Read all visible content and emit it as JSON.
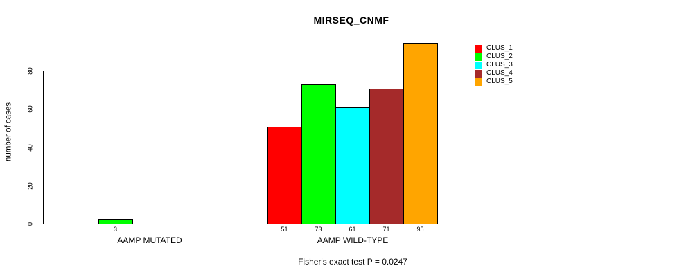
{
  "chart_data": {
    "type": "bar",
    "title": "MIRSEQ_CNMF",
    "ylabel": "number of cases",
    "yticks": [
      0,
      20,
      40,
      60,
      80
    ],
    "ylim": [
      0,
      96
    ],
    "grid": false,
    "legend_position": "right-top",
    "clusters": [
      {
        "name": "CLUS_1",
        "color": "#ff0000"
      },
      {
        "name": "CLUS_2",
        "color": "#00ff00"
      },
      {
        "name": "CLUS_3",
        "color": "#00ffff"
      },
      {
        "name": "CLUS_4",
        "color": "#a52a2a"
      },
      {
        "name": "CLUS_5",
        "color": "#ffa500"
      }
    ],
    "groups": [
      {
        "label": "AAMP MUTATED",
        "values": [
          0,
          3,
          0,
          0,
          0
        ],
        "value_labels": [
          "",
          "3",
          "",
          "",
          ""
        ]
      },
      {
        "label": "AAMP WILD-TYPE",
        "values": [
          51,
          73,
          61,
          71,
          95
        ],
        "value_labels": [
          "51",
          "73",
          "61",
          "71",
          "95"
        ]
      }
    ],
    "annotation": "Fisher's exact test P = 0.0247"
  }
}
